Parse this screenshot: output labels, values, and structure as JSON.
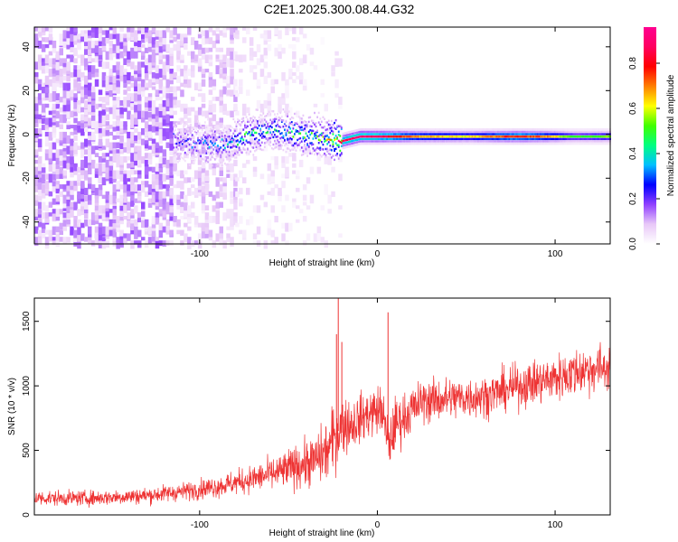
{
  "title": "C2E1.2025.300.08.44.G32",
  "chart_data": [
    {
      "type": "heatmap",
      "xlabel": "Height of straight line (km)",
      "ylabel": "Frequency (Hz)",
      "xlim": [
        -193,
        131
      ],
      "ylim": [
        -50,
        49
      ],
      "x_ticks": [
        -100,
        0,
        100
      ],
      "x_ticklabels": [
        "-100",
        "0",
        "100"
      ],
      "y_ticks": [
        -40,
        -20,
        0,
        20,
        40
      ],
      "y_ticklabels": [
        "-40",
        "-20",
        "0",
        "20",
        "40"
      ],
      "grid": false,
      "colorbar": {
        "label": "Normalized spectral amplitude",
        "range": [
          0.0,
          0.96
        ],
        "ticks": [
          0.0,
          0.2,
          0.4,
          0.6,
          0.8
        ],
        "ticklabels": [
          "0.0",
          "0.2",
          "0.4",
          "0.6",
          "0.8"
        ],
        "colormap": [
          "#ffffff",
          "#e8c8f8",
          "#9040ff",
          "#0000ff",
          "#00c0ff",
          "#00ff80",
          "#40ff00",
          "#ffff00",
          "#ff8000",
          "#ff0000",
          "#ff0060",
          "#ff0090"
        ]
      },
      "regions": [
        {
          "x": [
            -193,
            -115
          ],
          "y": [
            -50,
            49
          ],
          "level": 0.1,
          "density": 0.55
        },
        {
          "x": [
            -115,
            -80
          ],
          "y": [
            -50,
            49
          ],
          "level": 0.07,
          "density": 0.35
        },
        {
          "x": [
            -80,
            -40
          ],
          "y": [
            -50,
            49
          ],
          "level": 0.04,
          "density": 0.2
        },
        {
          "x": [
            -40,
            -20
          ],
          "y": [
            -50,
            49
          ],
          "level": 0.03,
          "density": 0.06
        }
      ],
      "ridge": [
        {
          "x": -115,
          "y": -3,
          "level": 0.25
        },
        {
          "x": -100,
          "y": -4,
          "level": 0.3
        },
        {
          "x": -85,
          "y": -5,
          "level": 0.35
        },
        {
          "x": -75,
          "y": 0,
          "level": 0.45
        },
        {
          "x": -60,
          "y": 2,
          "level": 0.4
        },
        {
          "x": -45,
          "y": 0,
          "level": 0.45
        },
        {
          "x": -30,
          "y": -2,
          "level": 0.5
        },
        {
          "x": -20,
          "y": -3,
          "level": 0.9
        },
        {
          "x": -10,
          "y": -1,
          "level": 0.92
        },
        {
          "x": 0,
          "y": -1,
          "level": 0.9
        },
        {
          "x": 20,
          "y": -1,
          "level": 0.7
        },
        {
          "x": 50,
          "y": -1,
          "level": 0.62
        },
        {
          "x": 80,
          "y": -1,
          "level": 0.8
        },
        {
          "x": 95,
          "y": -1,
          "level": 0.7
        },
        {
          "x": 110,
          "y": -1,
          "level": 0.5
        },
        {
          "x": 131,
          "y": -1,
          "level": 0.55
        }
      ]
    },
    {
      "type": "line",
      "xlabel": "Height of straight line (km)",
      "ylabel": "SNR (10 * v/v)",
      "xlim": [
        -193,
        131
      ],
      "ylim": [
        0,
        1680
      ],
      "x_ticks": [
        -100,
        0,
        100
      ],
      "x_ticklabels": [
        "-100",
        "0",
        "100"
      ],
      "y_ticks": [
        0,
        500,
        1000,
        1500
      ],
      "y_ticklabels": [
        "0",
        "500",
        "1000",
        "1500"
      ],
      "grid": false,
      "series": [
        {
          "color": "#ee3333",
          "x": [
            -193,
            -160,
            -130,
            -110,
            -90,
            -70,
            -55,
            -45,
            -35,
            -28,
            -24,
            -22,
            -20,
            -15,
            -8,
            -2,
            3,
            5,
            7,
            10,
            15,
            25,
            40,
            60,
            80,
            100,
            115,
            131
          ],
          "y": [
            130,
            130,
            150,
            180,
            220,
            280,
            330,
            380,
            420,
            500,
            600,
            650,
            700,
            700,
            760,
            800,
            820,
            600,
            560,
            700,
            760,
            880,
            900,
            920,
            1000,
            1060,
            1120,
            1150
          ],
          "noise": [
            55,
            55,
            60,
            65,
            80,
            100,
            130,
            160,
            190,
            230,
            260,
            240,
            220,
            190,
            180,
            180,
            180,
            200,
            180,
            200,
            180,
            160,
            160,
            150,
            160,
            170,
            180,
            180
          ]
        }
      ],
      "spikes": [
        {
          "x": -23,
          "y": 1400
        },
        {
          "x": -22,
          "y": 1680
        },
        {
          "x": -20,
          "y": 1340
        },
        {
          "x": 6,
          "y": 1570
        }
      ]
    }
  ]
}
